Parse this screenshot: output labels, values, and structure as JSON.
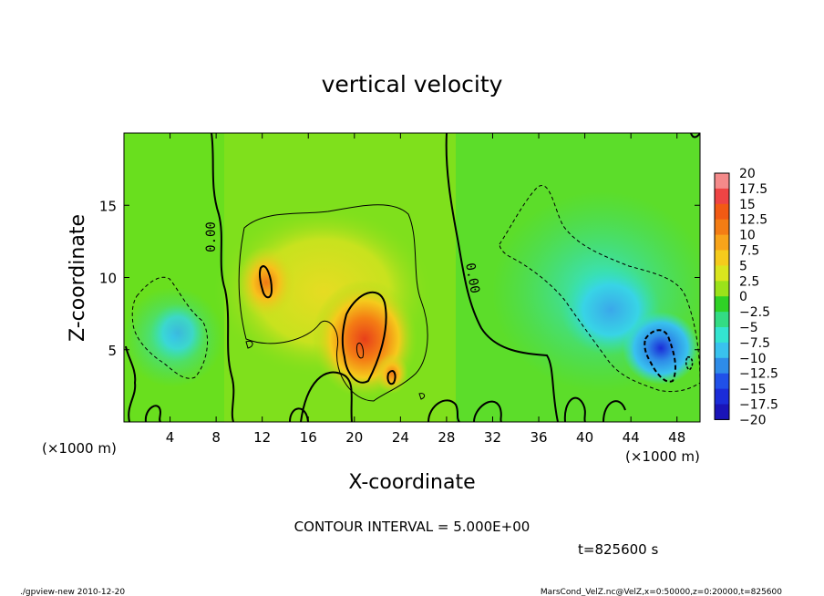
{
  "chart_data": {
    "type": "heatmap",
    "title": "vertical velocity",
    "xlabel": "X-coordinate",
    "ylabel": "Z-coordinate",
    "x_unit_label": "(×1000 m)",
    "x_unit_label_right": "(×1000 m)",
    "xlim": [
      0,
      50
    ],
    "ylim": [
      0,
      20
    ],
    "x_ticks": [
      4,
      8,
      12,
      16,
      20,
      24,
      28,
      32,
      36,
      40,
      44,
      48
    ],
    "y_ticks": [
      5,
      10,
      15
    ],
    "zero_contour_labels": [
      "0.00",
      "0.00"
    ],
    "colorbar": {
      "labels": [
        "20",
        "17.5",
        "15",
        "12.5",
        "10",
        "7.5",
        "5",
        "2.5",
        "0",
        "−2.5",
        "−5",
        "−7.5",
        "−10",
        "−12.5",
        "−15",
        "−17.5",
        "−20"
      ],
      "colors": [
        "#f48a8a",
        "#ee4444",
        "#f25a14",
        "#f47d14",
        "#f8a41a",
        "#f5cb1c",
        "#dae51e",
        "#9be21a",
        "#2fd226",
        "#33dc84",
        "#33e4d0",
        "#39c2ee",
        "#2e8ce8",
        "#2050e8",
        "#1b2cd8",
        "#1a14b8",
        "#5a18b0"
      ]
    },
    "fields": {
      "background": 0.5,
      "updrafts": [
        {
          "x": 21,
          "z": 5.5,
          "w": 16
        },
        {
          "x": 12.5,
          "z": 9.5,
          "w": 10
        },
        {
          "x": 17,
          "z": 11.5,
          "w": 6
        },
        {
          "x": 23,
          "z": 3,
          "w": 9
        }
      ],
      "downdrafts": [
        {
          "x": 46,
          "z": 5,
          "w": -14
        },
        {
          "x": 42,
          "z": 8.5,
          "w": -8
        },
        {
          "x": 40,
          "z": 13,
          "w": -5.5
        },
        {
          "x": 5,
          "z": 6.5,
          "w": -6
        }
      ]
    },
    "contour_interval_text": "CONTOUR INTERVAL = 5.000E+00",
    "time_text": "t=825600 s"
  },
  "footer": {
    "left": "./gpview-new  2010-12-20",
    "right": "MarsCond_VelZ.nc@VelZ,x=0:50000,z=0:20000,t=825600"
  }
}
